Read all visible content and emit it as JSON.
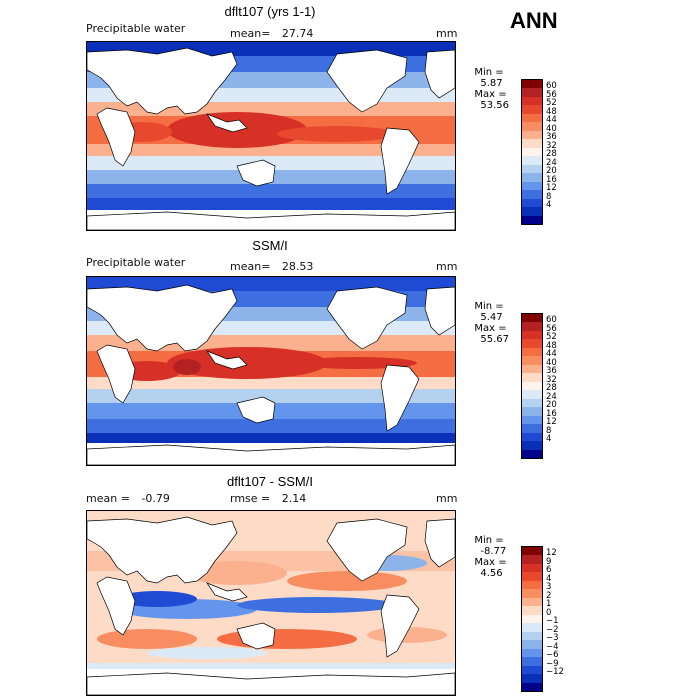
{
  "season": "ANN",
  "panels": [
    {
      "title": "dflt107 (yrs 1-1)",
      "left_label": "Precipitable water",
      "center_label": "mean=",
      "center_value": "27.74",
      "right_label": "mm",
      "min_label": "Min =",
      "min_value": "5.87",
      "max_label": "Max =",
      "max_value": "53.56",
      "colorbar": {
        "ticks": [
          "60",
          "56",
          "52",
          "48",
          "44",
          "40",
          "36",
          "32",
          "28",
          "24",
          "20",
          "16",
          "12",
          "8",
          "4"
        ],
        "colors": [
          "#800000",
          "#B22222",
          "#D73027",
          "#E8492E",
          "#F46D43",
          "#F88D62",
          "#FCB18E",
          "#FDDBC7",
          "#FFF3EC",
          "#DCEAF7",
          "#B4D2F0",
          "#8DB4EA",
          "#6495ED",
          "#3E6FE0",
          "#1F4BD4",
          "#0A2FB8",
          "#00008B"
        ]
      }
    },
    {
      "title": "SSM/I",
      "left_label": "Precipitable water",
      "center_label": "mean=",
      "center_value": "28.53",
      "right_label": "mm",
      "min_label": "Min =",
      "min_value": "5.47",
      "max_label": "Max =",
      "max_value": "55.67",
      "colorbar": {
        "ticks": [
          "60",
          "56",
          "52",
          "48",
          "44",
          "40",
          "36",
          "32",
          "28",
          "24",
          "20",
          "16",
          "12",
          "8",
          "4"
        ],
        "colors": [
          "#800000",
          "#B22222",
          "#D73027",
          "#E8492E",
          "#F46D43",
          "#F88D62",
          "#FCB18E",
          "#FDDBC7",
          "#FFF3EC",
          "#DCEAF7",
          "#B4D2F0",
          "#8DB4EA",
          "#6495ED",
          "#3E6FE0",
          "#1F4BD4",
          "#0A2FB8",
          "#00008B"
        ]
      }
    },
    {
      "title": "dflt107 - SSM/I",
      "left_label": "mean =",
      "left_value": "-0.79",
      "center_label": "rmse =",
      "center_value": "2.14",
      "right_label": "mm",
      "min_label": "Min =",
      "min_value": "-8.77",
      "max_label": "Max =",
      "max_value": "4.56",
      "colorbar": {
        "ticks": [
          "12",
          "9",
          "6",
          "4",
          "3",
          "2",
          "1",
          "0",
          "−1",
          "−2",
          "−3",
          "−4",
          "−6",
          "−9",
          "−12"
        ],
        "colors": [
          "#800000",
          "#B22222",
          "#D73027",
          "#E8492E",
          "#F46D43",
          "#F88D62",
          "#FCB18E",
          "#FDDBC7",
          "#FFF3EC",
          "#DCEAF7",
          "#B4D2F0",
          "#8DB4EA",
          "#6495ED",
          "#3E6FE0",
          "#1F4BD4",
          "#0A2FB8",
          "#00008B"
        ]
      }
    }
  ]
}
